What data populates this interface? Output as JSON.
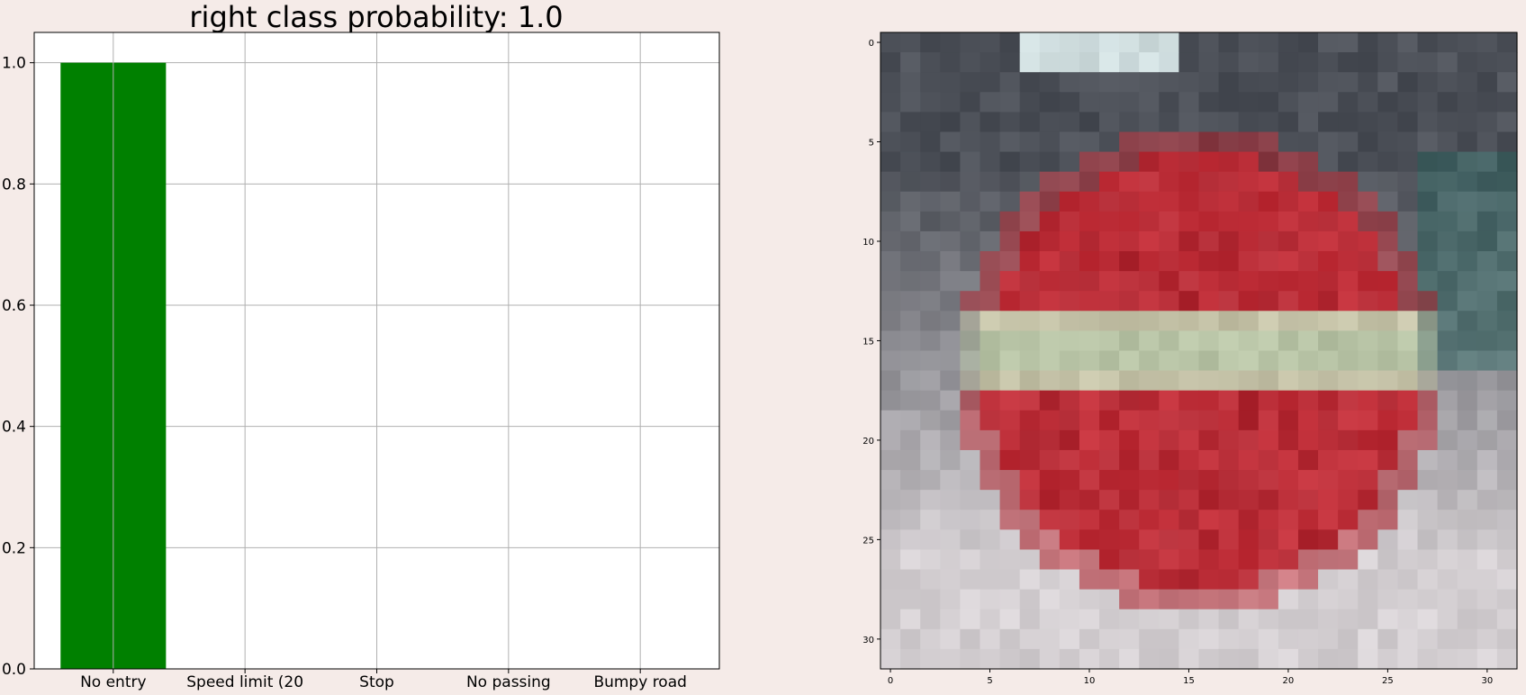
{
  "figure": {
    "background": "#f5ebe8"
  },
  "chart_data": [
    {
      "type": "bar",
      "title": "right class probability: 1.0",
      "categories": [
        "No entry",
        "Speed limit (20",
        "Stop",
        "No passing",
        "Bumpy road"
      ],
      "values": [
        1.0,
        0.0,
        0.0,
        0.0,
        0.0
      ],
      "bar_color": "#008000",
      "xlabel": "",
      "ylabel": "",
      "ylim": [
        0,
        1.05
      ],
      "yticks": [
        0.0,
        0.2,
        0.4,
        0.6,
        0.8,
        1.0
      ],
      "ytick_labels": [
        "0.0",
        "0.2",
        "0.4",
        "0.6",
        "0.8",
        "1.0"
      ],
      "grid": true
    },
    {
      "type": "heatmap",
      "title": "",
      "description": "32x32 pixelated image of a red circular 'No entry' road sign with a white horizontal bar",
      "xlim": [
        -0.5,
        31.5
      ],
      "ylim": [
        31.5,
        -0.5
      ],
      "xticks": [
        0,
        5,
        10,
        15,
        20,
        25,
        30
      ],
      "xtick_labels": [
        "0",
        "5",
        "10",
        "15",
        "20",
        "25",
        "30"
      ],
      "yticks": [
        0,
        5,
        10,
        15,
        20,
        25,
        30
      ],
      "ytick_labels": [
        "0",
        "5",
        "10",
        "15",
        "20",
        "25",
        "30"
      ],
      "palette": {
        "sign_red": "#c2303a",
        "sign_red_dark": "#a52630",
        "bar_light": "#c8c2a8",
        "bar_green": "#a6c4a2",
        "background_top": "#4c5058",
        "background_bottom": "#d4cfd2",
        "sky_light": "#e6f6f6",
        "teal": "#3e6a68"
      }
    }
  ]
}
